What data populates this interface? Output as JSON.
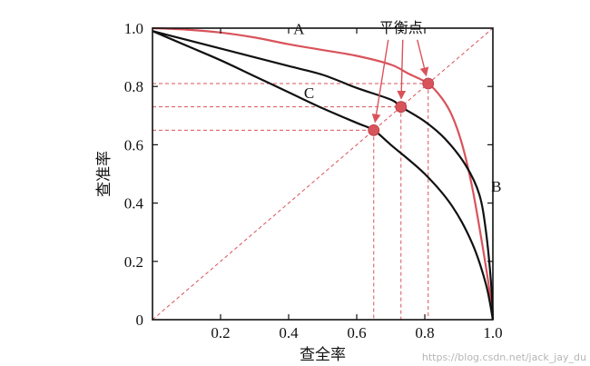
{
  "chart_data": {
    "type": "line",
    "title": "",
    "xlabel": "查全率",
    "ylabel": "查准率",
    "xlim": [
      0,
      1.0
    ],
    "ylim": [
      0,
      1.0
    ],
    "x_ticks": [
      {
        "value": 0.2,
        "label": "0.2"
      },
      {
        "value": 0.4,
        "label": "0.4"
      },
      {
        "value": 0.6,
        "label": "0.6"
      },
      {
        "value": 0.8,
        "label": "0.8"
      },
      {
        "value": 1.0,
        "label": "1.0"
      }
    ],
    "y_ticks": [
      {
        "value": 0,
        "label": "0"
      },
      {
        "value": 0.2,
        "label": "0.2"
      },
      {
        "value": 0.4,
        "label": "0.4"
      },
      {
        "value": 0.6,
        "label": "0.6"
      },
      {
        "value": 0.8,
        "label": "0.8"
      },
      {
        "value": 1.0,
        "label": "1.0"
      }
    ],
    "grid": false,
    "series": [
      {
        "name": "A",
        "color": "#d9535b",
        "points": [
          [
            0,
            1.0
          ],
          [
            0.1,
            0.995
          ],
          [
            0.2,
            0.985
          ],
          [
            0.3,
            0.968
          ],
          [
            0.4,
            0.945
          ],
          [
            0.5,
            0.925
          ],
          [
            0.6,
            0.905
          ],
          [
            0.7,
            0.875
          ],
          [
            0.75,
            0.845
          ],
          [
            0.81,
            0.81
          ],
          [
            0.85,
            0.76
          ],
          [
            0.88,
            0.7
          ],
          [
            0.91,
            0.6
          ],
          [
            0.94,
            0.45
          ],
          [
            0.97,
            0.25
          ],
          [
            0.99,
            0.1
          ],
          [
            1.0,
            0
          ]
        ]
      },
      {
        "name": "B",
        "color": "#111111",
        "points": [
          [
            0,
            0.99
          ],
          [
            0.1,
            0.96
          ],
          [
            0.2,
            0.93
          ],
          [
            0.3,
            0.9
          ],
          [
            0.4,
            0.87
          ],
          [
            0.5,
            0.84
          ],
          [
            0.6,
            0.795
          ],
          [
            0.7,
            0.755
          ],
          [
            0.73,
            0.73
          ],
          [
            0.8,
            0.68
          ],
          [
            0.86,
            0.62
          ],
          [
            0.92,
            0.53
          ],
          [
            0.96,
            0.43
          ],
          [
            0.98,
            0.3
          ],
          [
            0.995,
            0.12
          ],
          [
            1.0,
            0
          ]
        ]
      },
      {
        "name": "C",
        "color": "#111111",
        "points": [
          [
            0,
            0.99
          ],
          [
            0.1,
            0.94
          ],
          [
            0.2,
            0.89
          ],
          [
            0.3,
            0.835
          ],
          [
            0.4,
            0.78
          ],
          [
            0.5,
            0.725
          ],
          [
            0.6,
            0.675
          ],
          [
            0.65,
            0.65
          ],
          [
            0.7,
            0.6
          ],
          [
            0.8,
            0.5
          ],
          [
            0.88,
            0.39
          ],
          [
            0.94,
            0.26
          ],
          [
            0.98,
            0.12
          ],
          [
            1.0,
            0
          ]
        ]
      }
    ],
    "diagonal": {
      "from": [
        0,
        0
      ],
      "to": [
        1.0,
        1.0
      ],
      "color": "#d9535b",
      "style": "dashed"
    },
    "break_even_points": [
      [
        0.81,
        0.81
      ],
      [
        0.73,
        0.73
      ],
      [
        0.65,
        0.65
      ]
    ],
    "curve_labels": [
      {
        "text": "A",
        "x": 0.43,
        "y": 0.98
      },
      {
        "text": "B",
        "x": 1.01,
        "y": 0.44
      },
      {
        "text": "C",
        "x": 0.46,
        "y": 0.76
      }
    ],
    "annotation": {
      "text": "平衡点",
      "x": 0.73,
      "y": 0.985
    },
    "watermark": "https://blog.csdn.net/jack_jay_du"
  }
}
